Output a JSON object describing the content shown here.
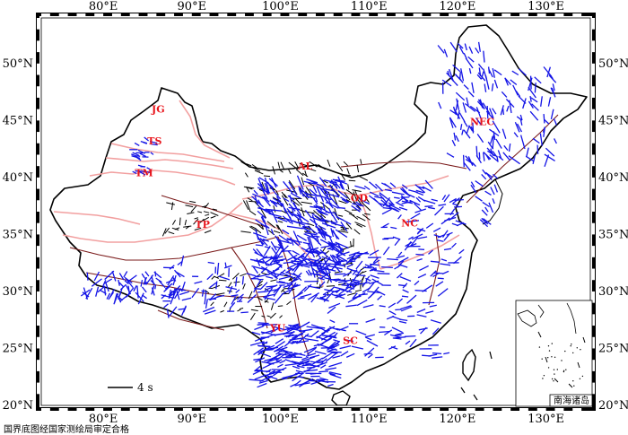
{
  "map": {
    "lon_labels": [
      "80°E",
      "90°E",
      "100°E",
      "110°E",
      "120°E",
      "130°E"
    ],
    "lat_labels": [
      "20°N",
      "25°N",
      "30°N",
      "35°N",
      "40°N",
      "45°N",
      "50°N"
    ],
    "lon_range": [
      73,
      135
    ],
    "lat_range": [
      20,
      54
    ],
    "regions": [
      {
        "label": "JG",
        "lon": 86.2,
        "lat": 45.7
      },
      {
        "label": "TS",
        "lon": 85.8,
        "lat": 42.9
      },
      {
        "label": "TM",
        "lon": 84.6,
        "lat": 40.1
      },
      {
        "label": "TP",
        "lon": 91.2,
        "lat": 35.6
      },
      {
        "label": "AL",
        "lon": 102.8,
        "lat": 40.7
      },
      {
        "label": "OD",
        "lon": 108.9,
        "lat": 37.9
      },
      {
        "label": "NC",
        "lon": 114.6,
        "lat": 35.7
      },
      {
        "label": "NEC",
        "lon": 122.8,
        "lat": 44.6
      },
      {
        "label": "YU",
        "lon": 99.7,
        "lat": 26.5
      },
      {
        "label": "SC",
        "lon": 107.9,
        "lat": 25.4
      }
    ],
    "scale_bar_label": "4 s",
    "inset_label": "南海诸岛",
    "footnote": "国界底图经国家测绘局审定合格",
    "colors": {
      "splitting_new": "#1414e6",
      "splitting_old": "#000000",
      "block_boundaries": "#f2a0a0",
      "faults": "#7a1a1a",
      "region_labels": "#e8141b"
    }
  }
}
